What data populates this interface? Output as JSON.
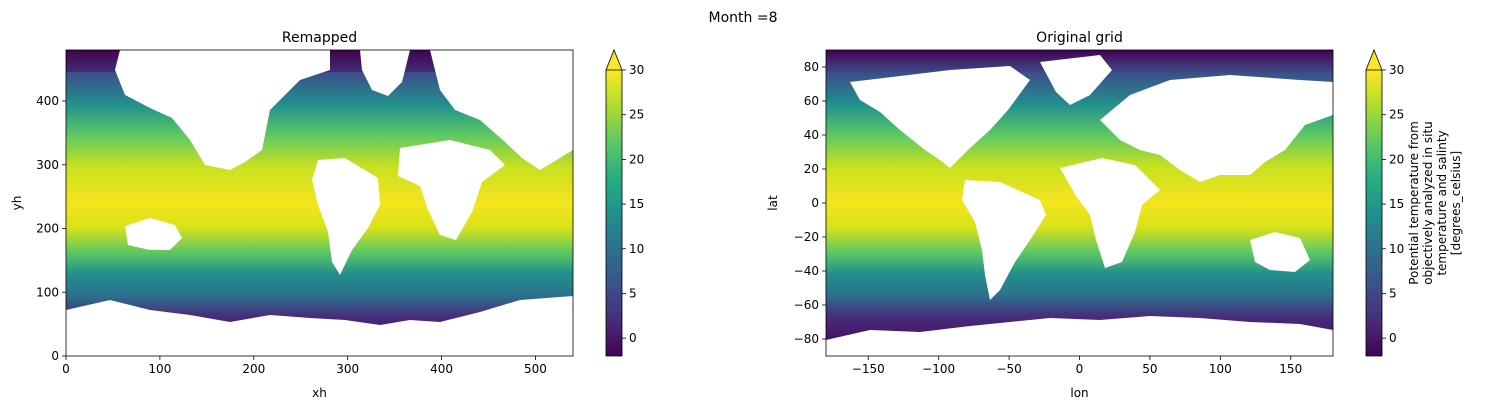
{
  "figure": {
    "suptitle": "Month =8"
  },
  "chart_data": [
    {
      "type": "heatmap",
      "title": "Remapped",
      "xlabel": "xh",
      "ylabel": "yh",
      "xlim": [
        0,
        540
      ],
      "ylim": [
        0,
        480
      ],
      "xticks": [
        0,
        100,
        200,
        300,
        400,
        500
      ],
      "yticks": [
        0,
        100,
        200,
        300,
        400
      ],
      "colorbar": {
        "label": "",
        "vmin": -2,
        "vmax": 30,
        "ticks": [
          0,
          5,
          10,
          15,
          20,
          25,
          30
        ],
        "extend": "max",
        "colormap": "viridis"
      },
      "grid": false
    },
    {
      "type": "heatmap",
      "title": "Original grid",
      "xlabel": "lon",
      "ylabel": "lat",
      "xlim": [
        -180,
        180
      ],
      "ylim": [
        -90,
        90
      ],
      "xticks": [
        -150,
        -100,
        -50,
        0,
        50,
        100,
        150
      ],
      "yticks": [
        -80,
        -60,
        -40,
        -20,
        0,
        20,
        40,
        60,
        80
      ],
      "colorbar": {
        "label": "Potential temperature from objectively analyzed in situ temperature and salinty [degrees_celsius]",
        "label_lines": [
          "Potential temperature from",
          "objectively analyzed in situ",
          "temperature and salinty",
          "[degrees_celsius]"
        ],
        "vmin": -2,
        "vmax": 30,
        "ticks": [
          0,
          5,
          10,
          15,
          20,
          25,
          30
        ],
        "extend": "max",
        "colormap": "viridis"
      },
      "grid": false
    }
  ]
}
